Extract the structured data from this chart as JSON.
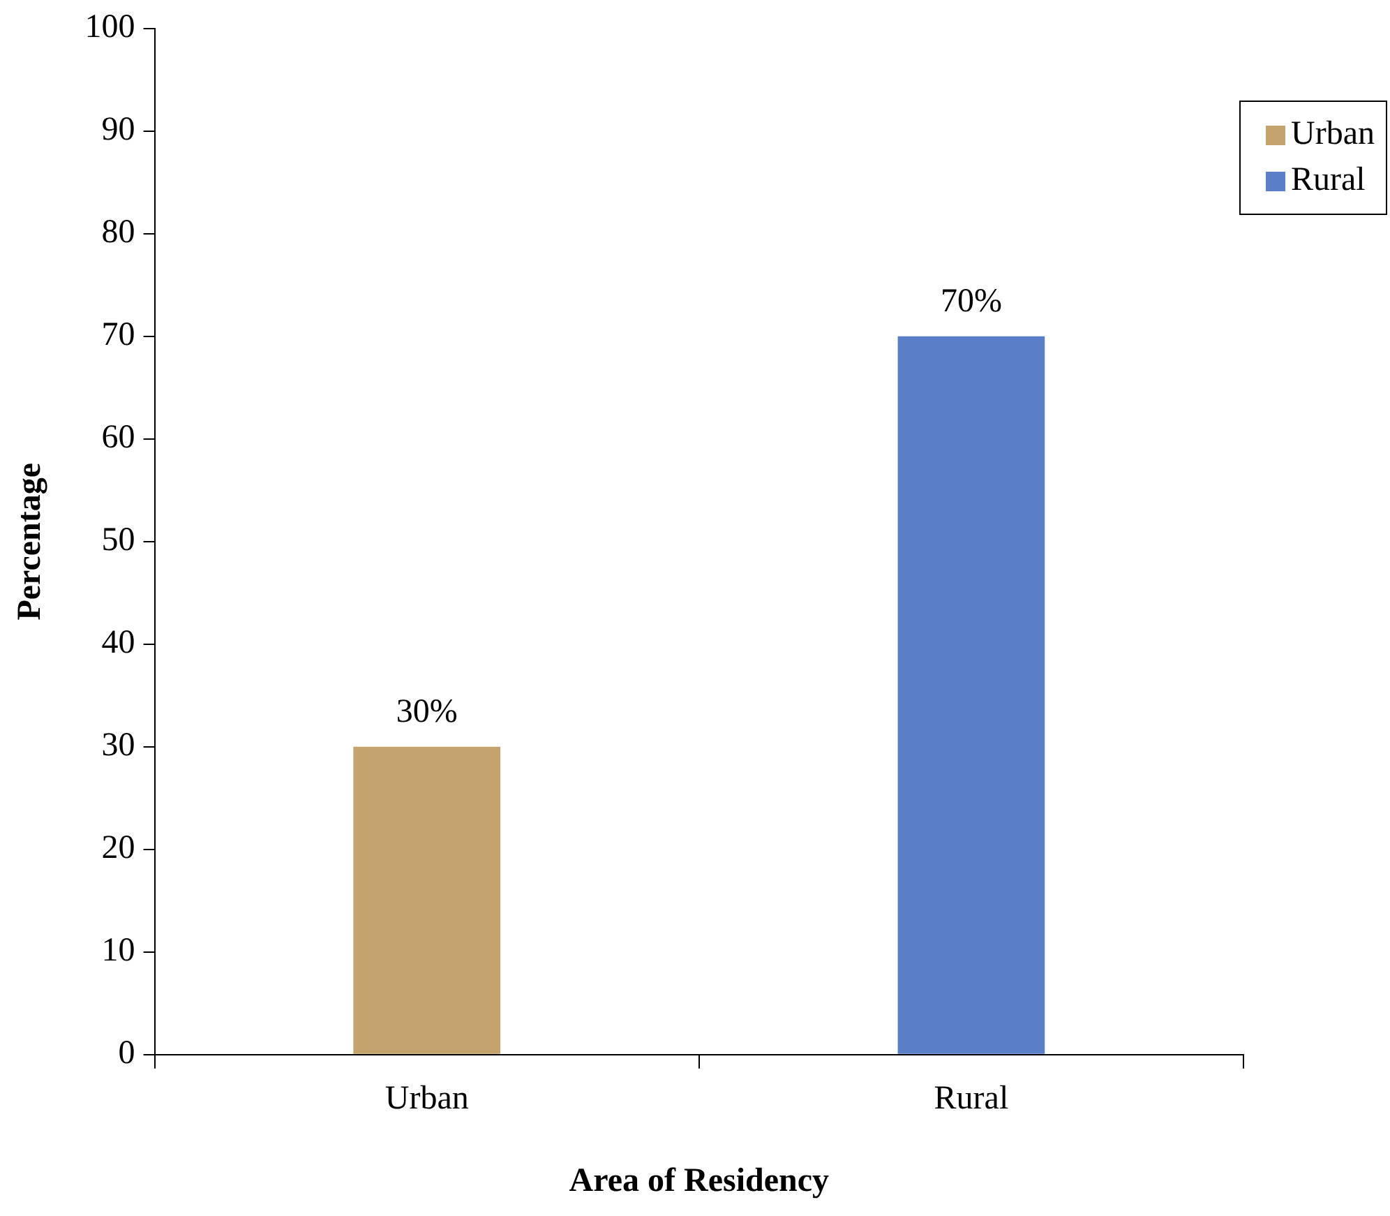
{
  "chart_data": {
    "type": "bar",
    "xlabel": "Area of Residency",
    "ylabel": "Percentage",
    "categories": [
      "Urban",
      "Rural"
    ],
    "series": [
      {
        "name": "Urban",
        "color": "#c4a46c",
        "values": [
          30,
          null
        ],
        "value_labels": [
          "30%",
          null
        ]
      },
      {
        "name": "Rural",
        "color": "#5b7fc6",
        "values": [
          null,
          70
        ],
        "value_labels": [
          null,
          "70%"
        ]
      }
    ],
    "ylim": [
      0,
      100
    ],
    "yticks": [
      0,
      10,
      20,
      30,
      40,
      50,
      60,
      70,
      80,
      90,
      100
    ],
    "grid": false,
    "legend": "top right"
  }
}
